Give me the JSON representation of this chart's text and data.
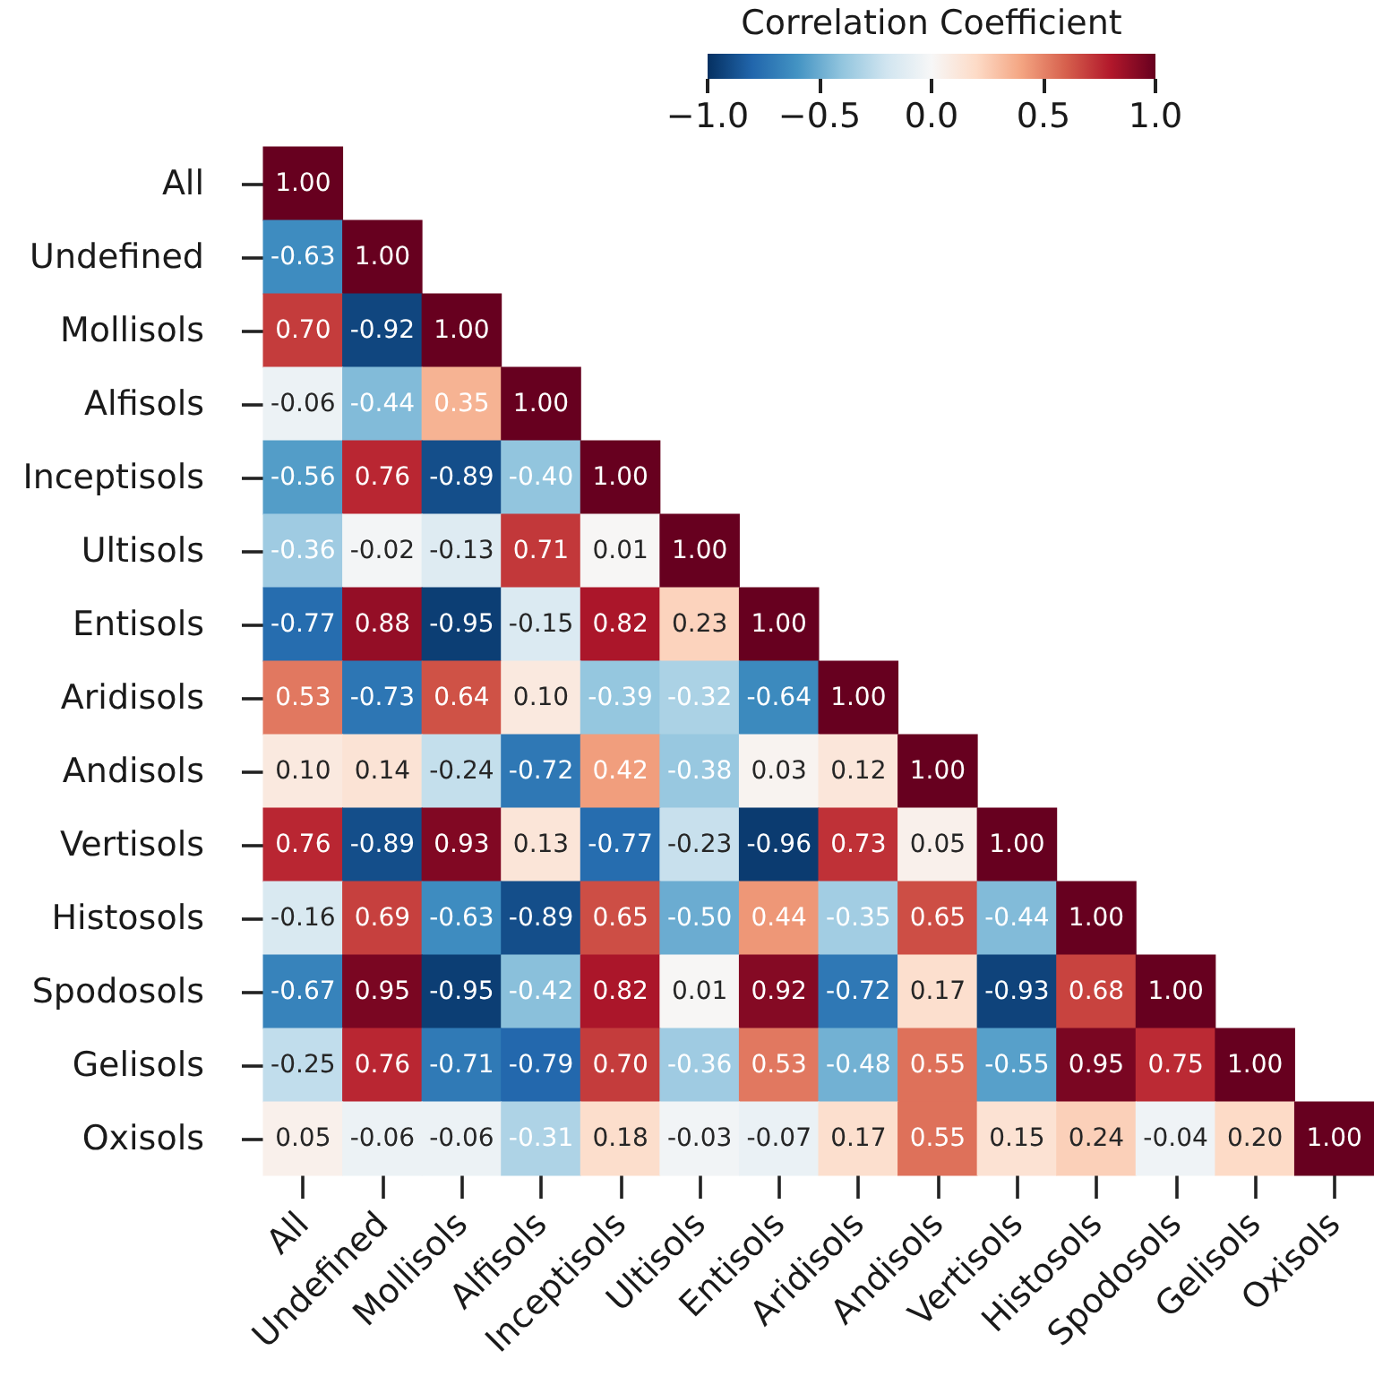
{
  "chart_data": {
    "type": "heatmap",
    "categories": [
      "All",
      "Undefined",
      "Mollisols",
      "Alfisols",
      "Inceptisols",
      "Ultisols",
      "Entisols",
      "Aridisols",
      "Andisols",
      "Vertisols",
      "Histosols",
      "Spodosols",
      "Gelisols",
      "Oxisols"
    ],
    "y_categories": [
      "All",
      "Undefined",
      "Mollisols",
      "Alfisols",
      "Inceptisols",
      "Ultisols",
      "Entisols",
      "Aridisols",
      "Andisols",
      "Vertisols",
      "Histosols",
      "Spodosols",
      "Gelisols",
      "Oxisols"
    ],
    "cells": [
      [
        1.0,
        null,
        null,
        null,
        null,
        null,
        null,
        null,
        null,
        null,
        null,
        null,
        null,
        null
      ],
      [
        -0.63,
        1.0,
        null,
        null,
        null,
        null,
        null,
        null,
        null,
        null,
        null,
        null,
        null,
        null
      ],
      [
        0.7,
        -0.92,
        1.0,
        null,
        null,
        null,
        null,
        null,
        null,
        null,
        null,
        null,
        null,
        null
      ],
      [
        -0.06,
        -0.44,
        0.35,
        1.0,
        null,
        null,
        null,
        null,
        null,
        null,
        null,
        null,
        null,
        null
      ],
      [
        -0.56,
        0.76,
        -0.89,
        -0.4,
        1.0,
        null,
        null,
        null,
        null,
        null,
        null,
        null,
        null,
        null
      ],
      [
        -0.36,
        -0.02,
        -0.13,
        0.71,
        0.01,
        1.0,
        null,
        null,
        null,
        null,
        null,
        null,
        null,
        null
      ],
      [
        -0.77,
        0.88,
        -0.95,
        -0.15,
        0.82,
        0.23,
        1.0,
        null,
        null,
        null,
        null,
        null,
        null,
        null
      ],
      [
        0.53,
        -0.73,
        0.64,
        0.1,
        -0.39,
        -0.32,
        -0.64,
        1.0,
        null,
        null,
        null,
        null,
        null,
        null
      ],
      [
        0.1,
        0.14,
        -0.24,
        -0.72,
        0.42,
        -0.38,
        0.03,
        0.12,
        1.0,
        null,
        null,
        null,
        null,
        null
      ],
      [
        0.76,
        -0.89,
        0.93,
        0.13,
        -0.77,
        -0.23,
        -0.96,
        0.73,
        0.05,
        1.0,
        null,
        null,
        null,
        null
      ],
      [
        -0.16,
        0.69,
        -0.63,
        -0.89,
        0.65,
        -0.5,
        0.44,
        -0.35,
        0.65,
        -0.44,
        1.0,
        null,
        null,
        null
      ],
      [
        -0.67,
        0.95,
        -0.95,
        -0.42,
        0.82,
        0.01,
        0.92,
        -0.72,
        0.17,
        -0.93,
        0.68,
        1.0,
        null,
        null
      ],
      [
        -0.25,
        0.76,
        -0.71,
        -0.79,
        0.7,
        -0.36,
        0.53,
        -0.48,
        0.55,
        -0.55,
        0.95,
        0.75,
        1.0,
        null
      ],
      [
        0.05,
        -0.06,
        -0.06,
        -0.31,
        0.18,
        -0.03,
        -0.07,
        0.17,
        0.55,
        0.15,
        0.24,
        -0.04,
        0.2,
        1.0
      ]
    ],
    "cell_labels": [
      [
        "1.00",
        null,
        null,
        null,
        null,
        null,
        null,
        null,
        null,
        null,
        null,
        null,
        null,
        null
      ],
      [
        "-0.63",
        "1.00",
        null,
        null,
        null,
        null,
        null,
        null,
        null,
        null,
        null,
        null,
        null,
        null
      ],
      [
        "0.70",
        "-0.92",
        "1.00",
        null,
        null,
        null,
        null,
        null,
        null,
        null,
        null,
        null,
        null,
        null
      ],
      [
        "-0.06",
        "-0.44",
        "0.35",
        "1.00",
        null,
        null,
        null,
        null,
        null,
        null,
        null,
        null,
        null,
        null
      ],
      [
        "-0.56",
        "0.76",
        "-0.89",
        "-0.40",
        "1.00",
        null,
        null,
        null,
        null,
        null,
        null,
        null,
        null,
        null
      ],
      [
        "-0.36",
        "-0.02",
        "-0.13",
        "0.71",
        "0.01",
        "1.00",
        null,
        null,
        null,
        null,
        null,
        null,
        null,
        null
      ],
      [
        "-0.77",
        "0.88",
        "-0.95",
        "-0.15",
        "0.82",
        "0.23",
        "1.00",
        null,
        null,
        null,
        null,
        null,
        null,
        null
      ],
      [
        "0.53",
        "-0.73",
        "0.64",
        "0.10",
        "-0.39",
        "-0.32",
        "-0.64",
        "1.00",
        null,
        null,
        null,
        null,
        null,
        null
      ],
      [
        "0.10",
        "0.14",
        "-0.24",
        "-0.72",
        "0.42",
        "-0.38",
        "0.03",
        "0.12",
        "1.00",
        null,
        null,
        null,
        null,
        null
      ],
      [
        "0.76",
        "-0.89",
        "0.93",
        "0.13",
        "-0.77",
        "-0.23",
        "-0.96",
        "0.73",
        "0.05",
        "1.00",
        null,
        null,
        null,
        null
      ],
      [
        "-0.16",
        "0.69",
        "-0.63",
        "-0.89",
        "0.65",
        "-0.50",
        "0.44",
        "-0.35",
        "0.65",
        "-0.44",
        "1.00",
        null,
        null,
        null
      ],
      [
        "-0.67",
        "0.95",
        "-0.95",
        "-0.42",
        "0.82",
        "0.01",
        "0.92",
        "-0.72",
        "0.17",
        "-0.93",
        "0.68",
        "1.00",
        null,
        null
      ],
      [
        "-0.25",
        "0.76",
        "-0.71",
        "-0.79",
        "0.70",
        "-0.36",
        "0.53",
        "-0.48",
        "0.55",
        "-0.55",
        "0.95",
        "0.75",
        "1.00",
        null
      ],
      [
        "0.05",
        "-0.06",
        "-0.06",
        "-0.31",
        "0.18",
        "-0.03",
        "-0.07",
        "0.17",
        "0.55",
        "0.15",
        "0.24",
        "-0.04",
        "0.20",
        "1.00"
      ]
    ],
    "clim": [
      -1,
      1
    ],
    "cticks": [
      {
        "value": -1,
        "label": "−1.0"
      },
      {
        "value": -0.5,
        "label": "−0.5"
      },
      {
        "value": 0,
        "label": "0.0"
      },
      {
        "value": 0.5,
        "label": "0.5"
      },
      {
        "value": 1,
        "label": "1.0"
      }
    ],
    "clabel": "Correlation Coefficient"
  }
}
